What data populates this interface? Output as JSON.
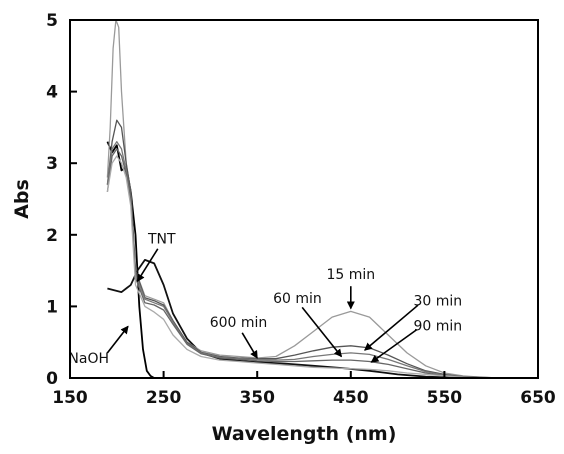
{
  "chart_data": {
    "type": "line",
    "title": "",
    "xlabel": "Wavelength (nm)",
    "ylabel": "Abs",
    "xlim": [
      150,
      650
    ],
    "ylim": [
      0,
      5
    ],
    "x_ticks": [
      "150",
      "250",
      "350",
      "450",
      "550",
      "650"
    ],
    "y_ticks": [
      "0",
      "1",
      "2",
      "3",
      "4",
      "5"
    ],
    "grid": false,
    "legend": "none",
    "series": [
      {
        "name": "NaOH",
        "color": "#000000",
        "x": [
          190,
          195,
          200,
          205,
          210,
          215,
          220,
          224,
          228,
          232,
          236,
          240
        ],
        "y": [
          3.3,
          3.15,
          3.25,
          2.9,
          2.95,
          2.6,
          2.0,
          1.0,
          0.4,
          0.1,
          0.03,
          0.0
        ]
      },
      {
        "name": "TNT",
        "color": "#111111",
        "x": [
          190,
          205,
          215,
          222,
          230,
          240,
          250,
          260,
          275,
          290,
          310,
          330,
          350,
          380,
          410,
          440,
          470,
          500,
          530,
          560,
          590
        ],
        "y": [
          1.25,
          1.2,
          1.3,
          1.5,
          1.65,
          1.6,
          1.3,
          0.9,
          0.55,
          0.35,
          0.27,
          0.24,
          0.22,
          0.2,
          0.17,
          0.14,
          0.1,
          0.05,
          0.02,
          0.005,
          0.0
        ]
      },
      {
        "name": "15 min",
        "color": "#9a9a9a",
        "x": [
          190,
          193,
          196,
          199,
          202,
          205,
          210,
          215,
          220,
          230,
          240,
          250,
          260,
          275,
          290,
          310,
          330,
          350,
          370,
          390,
          410,
          430,
          450,
          470,
          490,
          510,
          530,
          550,
          570,
          590,
          610
        ],
        "y": [
          2.8,
          3.5,
          4.6,
          5.0,
          4.9,
          4.0,
          3.0,
          2.6,
          1.5,
          1.15,
          1.1,
          1.05,
          0.8,
          0.5,
          0.38,
          0.32,
          0.3,
          0.28,
          0.3,
          0.45,
          0.65,
          0.85,
          0.93,
          0.85,
          0.6,
          0.35,
          0.17,
          0.07,
          0.03,
          0.01,
          0.0
        ]
      },
      {
        "name": "30 min",
        "color": "#555555",
        "x": [
          190,
          195,
          200,
          205,
          210,
          215,
          220,
          230,
          240,
          250,
          260,
          275,
          290,
          310,
          330,
          350,
          370,
          390,
          410,
          430,
          450,
          470,
          490,
          510,
          530,
          550,
          570,
          590,
          610
        ],
        "y": [
          2.7,
          3.3,
          3.6,
          3.5,
          3.0,
          2.6,
          1.5,
          1.12,
          1.08,
          1.02,
          0.8,
          0.5,
          0.36,
          0.3,
          0.28,
          0.27,
          0.27,
          0.32,
          0.38,
          0.43,
          0.45,
          0.42,
          0.32,
          0.2,
          0.1,
          0.05,
          0.02,
          0.01,
          0.0
        ]
      },
      {
        "name": "60 min",
        "color": "#777777",
        "x": [
          190,
          195,
          200,
          205,
          210,
          215,
          220,
          230,
          240,
          250,
          260,
          275,
          290,
          310,
          330,
          350,
          370,
          390,
          410,
          430,
          450,
          470,
          490,
          510,
          530,
          550,
          570,
          590,
          610
        ],
        "y": [
          2.7,
          3.2,
          3.3,
          3.2,
          2.9,
          2.5,
          1.45,
          1.1,
          1.05,
          1.0,
          0.78,
          0.48,
          0.35,
          0.29,
          0.27,
          0.26,
          0.25,
          0.26,
          0.3,
          0.33,
          0.35,
          0.33,
          0.26,
          0.17,
          0.09,
          0.04,
          0.02,
          0.0,
          0.0
        ]
      },
      {
        "name": "90 min",
        "color": "#666666",
        "x": [
          190,
          195,
          200,
          205,
          210,
          215,
          220,
          230,
          240,
          250,
          260,
          275,
          290,
          310,
          330,
          350,
          370,
          390,
          410,
          430,
          450,
          470,
          490,
          510,
          530,
          550,
          570,
          590,
          610
        ],
        "y": [
          2.6,
          3.1,
          3.2,
          3.1,
          2.85,
          2.5,
          1.4,
          1.05,
          1.02,
          0.95,
          0.75,
          0.47,
          0.34,
          0.28,
          0.26,
          0.24,
          0.23,
          0.23,
          0.24,
          0.25,
          0.25,
          0.23,
          0.19,
          0.13,
          0.07,
          0.03,
          0.01,
          0.0,
          0.0
        ]
      },
      {
        "name": "600 min",
        "color": "#aaaaaa",
        "x": [
          190,
          195,
          200,
          205,
          210,
          215,
          220,
          230,
          240,
          250,
          260,
          275,
          290,
          310,
          330,
          350,
          370,
          390,
          410,
          430,
          450,
          470,
          490,
          510,
          530,
          550,
          570,
          590,
          610
        ],
        "y": [
          2.6,
          3.0,
          3.1,
          3.0,
          2.8,
          2.4,
          1.3,
          1.0,
          0.92,
          0.82,
          0.6,
          0.4,
          0.3,
          0.25,
          0.23,
          0.21,
          0.19,
          0.17,
          0.15,
          0.14,
          0.13,
          0.12,
          0.1,
          0.07,
          0.05,
          0.03,
          0.01,
          0.0,
          0.0
        ]
      }
    ],
    "annotations": [
      {
        "text": "TNT",
        "label_x": 248,
        "label_y": 1.95,
        "arrow_to": [
          222,
          1.35
        ]
      },
      {
        "text": "NaOH",
        "label_x": 170,
        "label_y": 0.28,
        "arrow_to": [
          212,
          0.72
        ]
      },
      {
        "text": "15 min",
        "label_x": 450,
        "label_y": 1.45,
        "arrow_to": [
          450,
          0.97
        ]
      },
      {
        "text": "60 min",
        "label_x": 393,
        "label_y": 1.12,
        "arrow_to": [
          440,
          0.3
        ]
      },
      {
        "text": "30 min",
        "label_x": 543,
        "label_y": 1.08,
        "arrow_to": [
          465,
          0.39
        ]
      },
      {
        "text": "90 min",
        "label_x": 543,
        "label_y": 0.73,
        "arrow_to": [
          472,
          0.22
        ]
      },
      {
        "text": "600 min",
        "label_x": 330,
        "label_y": 0.78,
        "arrow_to": [
          350,
          0.28
        ]
      }
    ]
  }
}
